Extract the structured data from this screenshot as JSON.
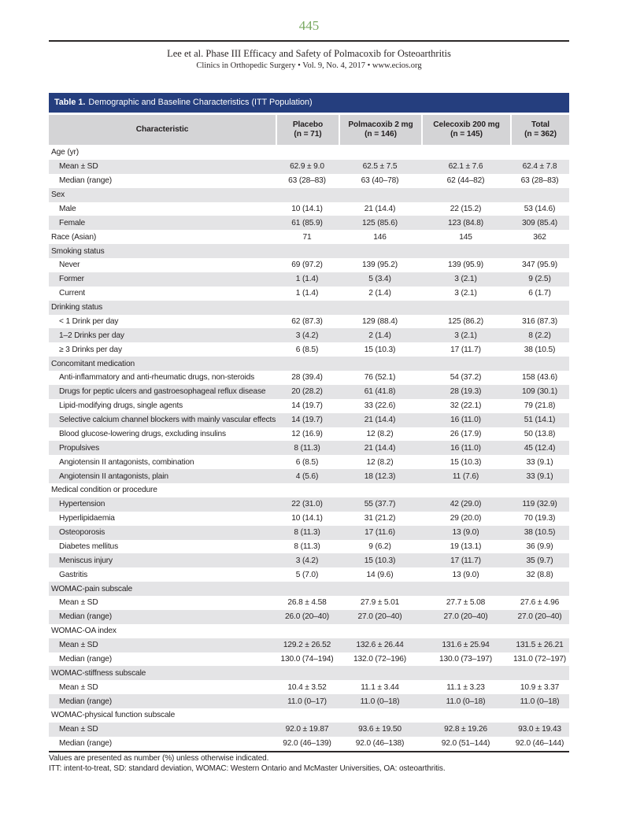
{
  "page_header": {
    "page_number": "445",
    "citation_title": "Lee et al. Phase III Efficacy and Safety of Polmacoxib for Osteoarthritis",
    "citation_source": "Clinics in Orthopedic Surgery • Vol. 9, No. 4, 2017 • www.ecios.org"
  },
  "colors": {
    "title_bar_navy": "#253e7e",
    "header_gray": "#d4d4d6",
    "row_shade_gray": "#e4e4e6",
    "page_number_green": "#79a961",
    "text": "#231f20"
  },
  "table": {
    "title_label": "Table 1.",
    "title_text": "Demographic and Baseline Characteristics (ITT Population)",
    "columns": [
      {
        "label": "Characteristic"
      },
      {
        "label": "Placebo",
        "n": "(n = 71)"
      },
      {
        "label": "Polmacoxib 2 mg",
        "n": "(n = 146)"
      },
      {
        "label": "Celecoxib 200 mg",
        "n": "(n = 145)"
      },
      {
        "label": "Total",
        "n": "(n = 362)"
      }
    ],
    "rows": [
      {
        "label": "Age (yr)",
        "section": true
      },
      {
        "label": "Mean ± SD",
        "indent": true,
        "values": [
          "62.9 ± 9.0",
          "62.5 ± 7.5",
          "62.1 ± 7.6",
          "62.4 ± 7.8"
        ]
      },
      {
        "label": "Median (range)",
        "indent": true,
        "values": [
          "63 (28–83)",
          "63 (40–78)",
          "62 (44–82)",
          "63 (28–83)"
        ]
      },
      {
        "label": "Sex",
        "section": true
      },
      {
        "label": "Male",
        "indent": true,
        "values": [
          "10 (14.1)",
          "21 (14.4)",
          "22 (15.2)",
          "53 (14.6)"
        ]
      },
      {
        "label": "Female",
        "indent": true,
        "values": [
          "61 (85.9)",
          "125 (85.6)",
          "123 (84.8)",
          "309 (85.4)"
        ]
      },
      {
        "label": "Race (Asian)",
        "section": false,
        "values": [
          "71",
          "146",
          "145",
          "362"
        ]
      },
      {
        "label": "Smoking status",
        "section": true
      },
      {
        "label": "Never",
        "indent": true,
        "values": [
          "69 (97.2)",
          "139 (95.2)",
          "139 (95.9)",
          "347 (95.9)"
        ]
      },
      {
        "label": "Former",
        "indent": true,
        "values": [
          "1 (1.4)",
          "5 (3.4)",
          "3 (2.1)",
          "9 (2.5)"
        ]
      },
      {
        "label": "Current",
        "indent": true,
        "values": [
          "1 (1.4)",
          "2 (1.4)",
          "3 (2.1)",
          "6 (1.7)"
        ]
      },
      {
        "label": "Drinking status",
        "section": true
      },
      {
        "label": "< 1 Drink per day",
        "indent": true,
        "values": [
          "62 (87.3)",
          "129 (88.4)",
          "125 (86.2)",
          "316 (87.3)"
        ]
      },
      {
        "label": "1–2 Drinks per day",
        "indent": true,
        "values": [
          "3 (4.2)",
          "2 (1.4)",
          "3 (2.1)",
          "8 (2.2)"
        ]
      },
      {
        "label": "≥ 3 Drinks per day",
        "indent": true,
        "values": [
          "6 (8.5)",
          "15 (10.3)",
          "17 (11.7)",
          "38 (10.5)"
        ]
      },
      {
        "label": "Concomitant medication",
        "section": true
      },
      {
        "label": "Anti-inflammatory and anti-rheumatic drugs, non-steroids",
        "indent": true,
        "values": [
          "28 (39.4)",
          "76 (52.1)",
          "54 (37.2)",
          "158 (43.6)"
        ]
      },
      {
        "label": "Drugs for peptic ulcers and gastroesophageal reflux disease",
        "indent": true,
        "values": [
          "20 (28.2)",
          "61 (41.8)",
          "28 (19.3)",
          "109 (30.1)"
        ]
      },
      {
        "label": "Lipid-modifying drugs, single agents",
        "indent": true,
        "values": [
          "14 (19.7)",
          "33 (22.6)",
          "32 (22.1)",
          "79 (21.8)"
        ]
      },
      {
        "label": "Selective calcium channel blockers with mainly vascular effects",
        "indent": true,
        "values": [
          "14 (19.7)",
          "21 (14.4)",
          "16 (11.0)",
          "51 (14.1)"
        ]
      },
      {
        "label": "Blood glucose-lowering drugs, excluding insulins",
        "indent": true,
        "values": [
          "12 (16.9)",
          "12 (8.2)",
          "26 (17.9)",
          "50 (13.8)"
        ]
      },
      {
        "label": "Propulsives",
        "indent": true,
        "values": [
          "8 (11.3)",
          "21 (14.4)",
          "16 (11.0)",
          "45 (12.4)"
        ]
      },
      {
        "label": "Angiotensin II antagonists, combination",
        "indent": true,
        "values": [
          "6 (8.5)",
          "12 (8.2)",
          "15 (10.3)",
          "33 (9.1)"
        ]
      },
      {
        "label": "Angiotensin II antagonists, plain",
        "indent": true,
        "values": [
          "4 (5.6)",
          "18 (12.3)",
          "11 (7.6)",
          "33 (9.1)"
        ]
      },
      {
        "label": "Medical condition or procedure",
        "section": true
      },
      {
        "label": "Hypertension",
        "indent": true,
        "values": [
          "22 (31.0)",
          "55 (37.7)",
          "42 (29.0)",
          "119 (32.9)"
        ]
      },
      {
        "label": "Hyperlipidaemia",
        "indent": true,
        "values": [
          "10 (14.1)",
          "31 (21.2)",
          "29 (20.0)",
          "70 (19.3)"
        ]
      },
      {
        "label": "Osteoporosis",
        "indent": true,
        "values": [
          "8 (11.3)",
          "17 (11.6)",
          "13 (9.0)",
          "38 (10.5)"
        ]
      },
      {
        "label": "Diabetes mellitus",
        "indent": true,
        "values": [
          "8 (11.3)",
          "9 (6.2)",
          "19 (13.1)",
          "36 (9.9)"
        ]
      },
      {
        "label": "Meniscus injury",
        "indent": true,
        "values": [
          "3 (4.2)",
          "15 (10.3)",
          "17 (11.7)",
          "35 (9.7)"
        ]
      },
      {
        "label": "Gastritis",
        "indent": true,
        "values": [
          "5 (7.0)",
          "14 (9.6)",
          "13 (9.0)",
          "32 (8.8)"
        ]
      },
      {
        "label": "WOMAC-pain subscale",
        "section": true
      },
      {
        "label": "Mean ± SD",
        "indent": true,
        "values": [
          "26.8 ± 4.58",
          "27.9 ± 5.01",
          "27.7 ± 5.08",
          "27.6 ± 4.96"
        ]
      },
      {
        "label": "Median (range)",
        "indent": true,
        "values": [
          "26.0 (20–40)",
          "27.0 (20–40)",
          "27.0 (20–40)",
          "27.0 (20–40)"
        ]
      },
      {
        "label": "WOMAC-OA index",
        "section": true
      },
      {
        "label": "Mean ± SD",
        "indent": true,
        "values": [
          "129.2 ± 26.52",
          "132.6 ± 26.44",
          "131.6 ± 25.94",
          "131.5 ± 26.21"
        ]
      },
      {
        "label": "Median (range)",
        "indent": true,
        "values": [
          "130.0 (74–194)",
          "132.0 (72–196)",
          "130.0 (73–197)",
          "131.0 (72–197)"
        ]
      },
      {
        "label": "WOMAC-stiffness subscale",
        "section": true
      },
      {
        "label": "Mean ± SD",
        "indent": true,
        "values": [
          "10.4 ± 3.52",
          "11.1 ± 3.44",
          "11.1 ± 3.23",
          "10.9 ± 3.37"
        ]
      },
      {
        "label": "Median (range)",
        "indent": true,
        "values": [
          "11.0 (0–17)",
          "11.0 (0–18)",
          "11.0 (0–18)",
          "11.0 (0–18)"
        ]
      },
      {
        "label": "WOMAC-physical function subscale",
        "section": true
      },
      {
        "label": "Mean ± SD",
        "indent": true,
        "values": [
          "92.0 ± 19.87",
          "93.6 ± 19.50",
          "92.8 ± 19.26",
          "93.0 ± 19.43"
        ]
      },
      {
        "label": "Median (range)",
        "indent": true,
        "values": [
          "92.0 (46–139)",
          "92.0 (46–138)",
          "92.0 (51–144)",
          "92.0 (46–144)"
        ]
      }
    ],
    "footnotes": {
      "line1": "Values are presented as number (%) unless otherwise indicated.",
      "line2": "ITT: intent-to-treat, SD: standard deviation, WOMAC: Western Ontario and McMaster Universities, OA: osteoarthritis."
    }
  }
}
